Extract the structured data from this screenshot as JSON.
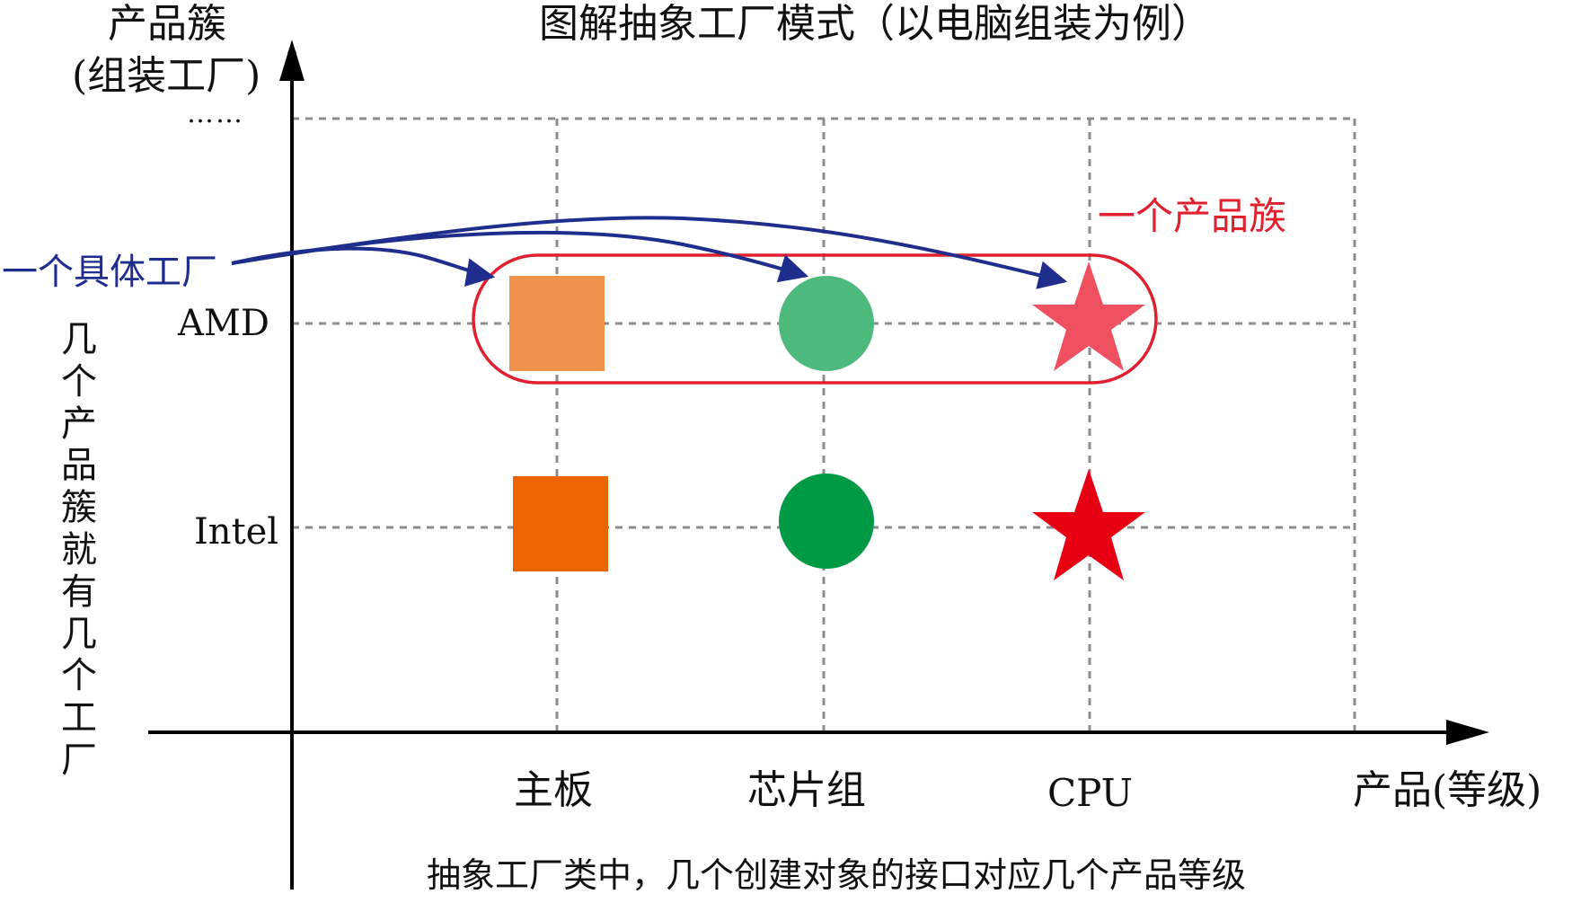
{
  "title": "图解抽象工厂模式（以电脑组装为例）",
  "y_axis": {
    "title": "产品簇",
    "subtitle": "(组装工厂)",
    "ellipsis": "……"
  },
  "x_axis": {
    "title": "产品(等级)"
  },
  "rows": [
    "AMD",
    "Intel"
  ],
  "columns": [
    "主板",
    "芯片组",
    "CPU"
  ],
  "side_note": "几个产品簇就有几个工厂",
  "annotations": {
    "concrete_factory": "一个具体工厂",
    "product_family": "一个产品族"
  },
  "caption": "抽象工厂类中，几个创建对象的接口对应几个产品等级",
  "shapes": [
    {
      "row": "AMD",
      "column": "主板",
      "icon": "square-icon",
      "color": "#f0914c"
    },
    {
      "row": "AMD",
      "column": "芯片组",
      "icon": "circle-icon",
      "color": "#4cba7c"
    },
    {
      "row": "AMD",
      "column": "CPU",
      "icon": "star-icon",
      "color": "#ef5060"
    },
    {
      "row": "Intel",
      "column": "主板",
      "icon": "square-icon",
      "color": "#ea6400"
    },
    {
      "row": "Intel",
      "column": "芯片组",
      "icon": "circle-icon",
      "color": "#009a44"
    },
    {
      "row": "Intel",
      "column": "CPU",
      "icon": "star-icon",
      "color": "#e60012"
    }
  ],
  "colors": {
    "axis": "#000000",
    "grid": "#8c8c8c",
    "factory_arrow": "#1f2e8c",
    "family_outline": "#e0202e"
  }
}
